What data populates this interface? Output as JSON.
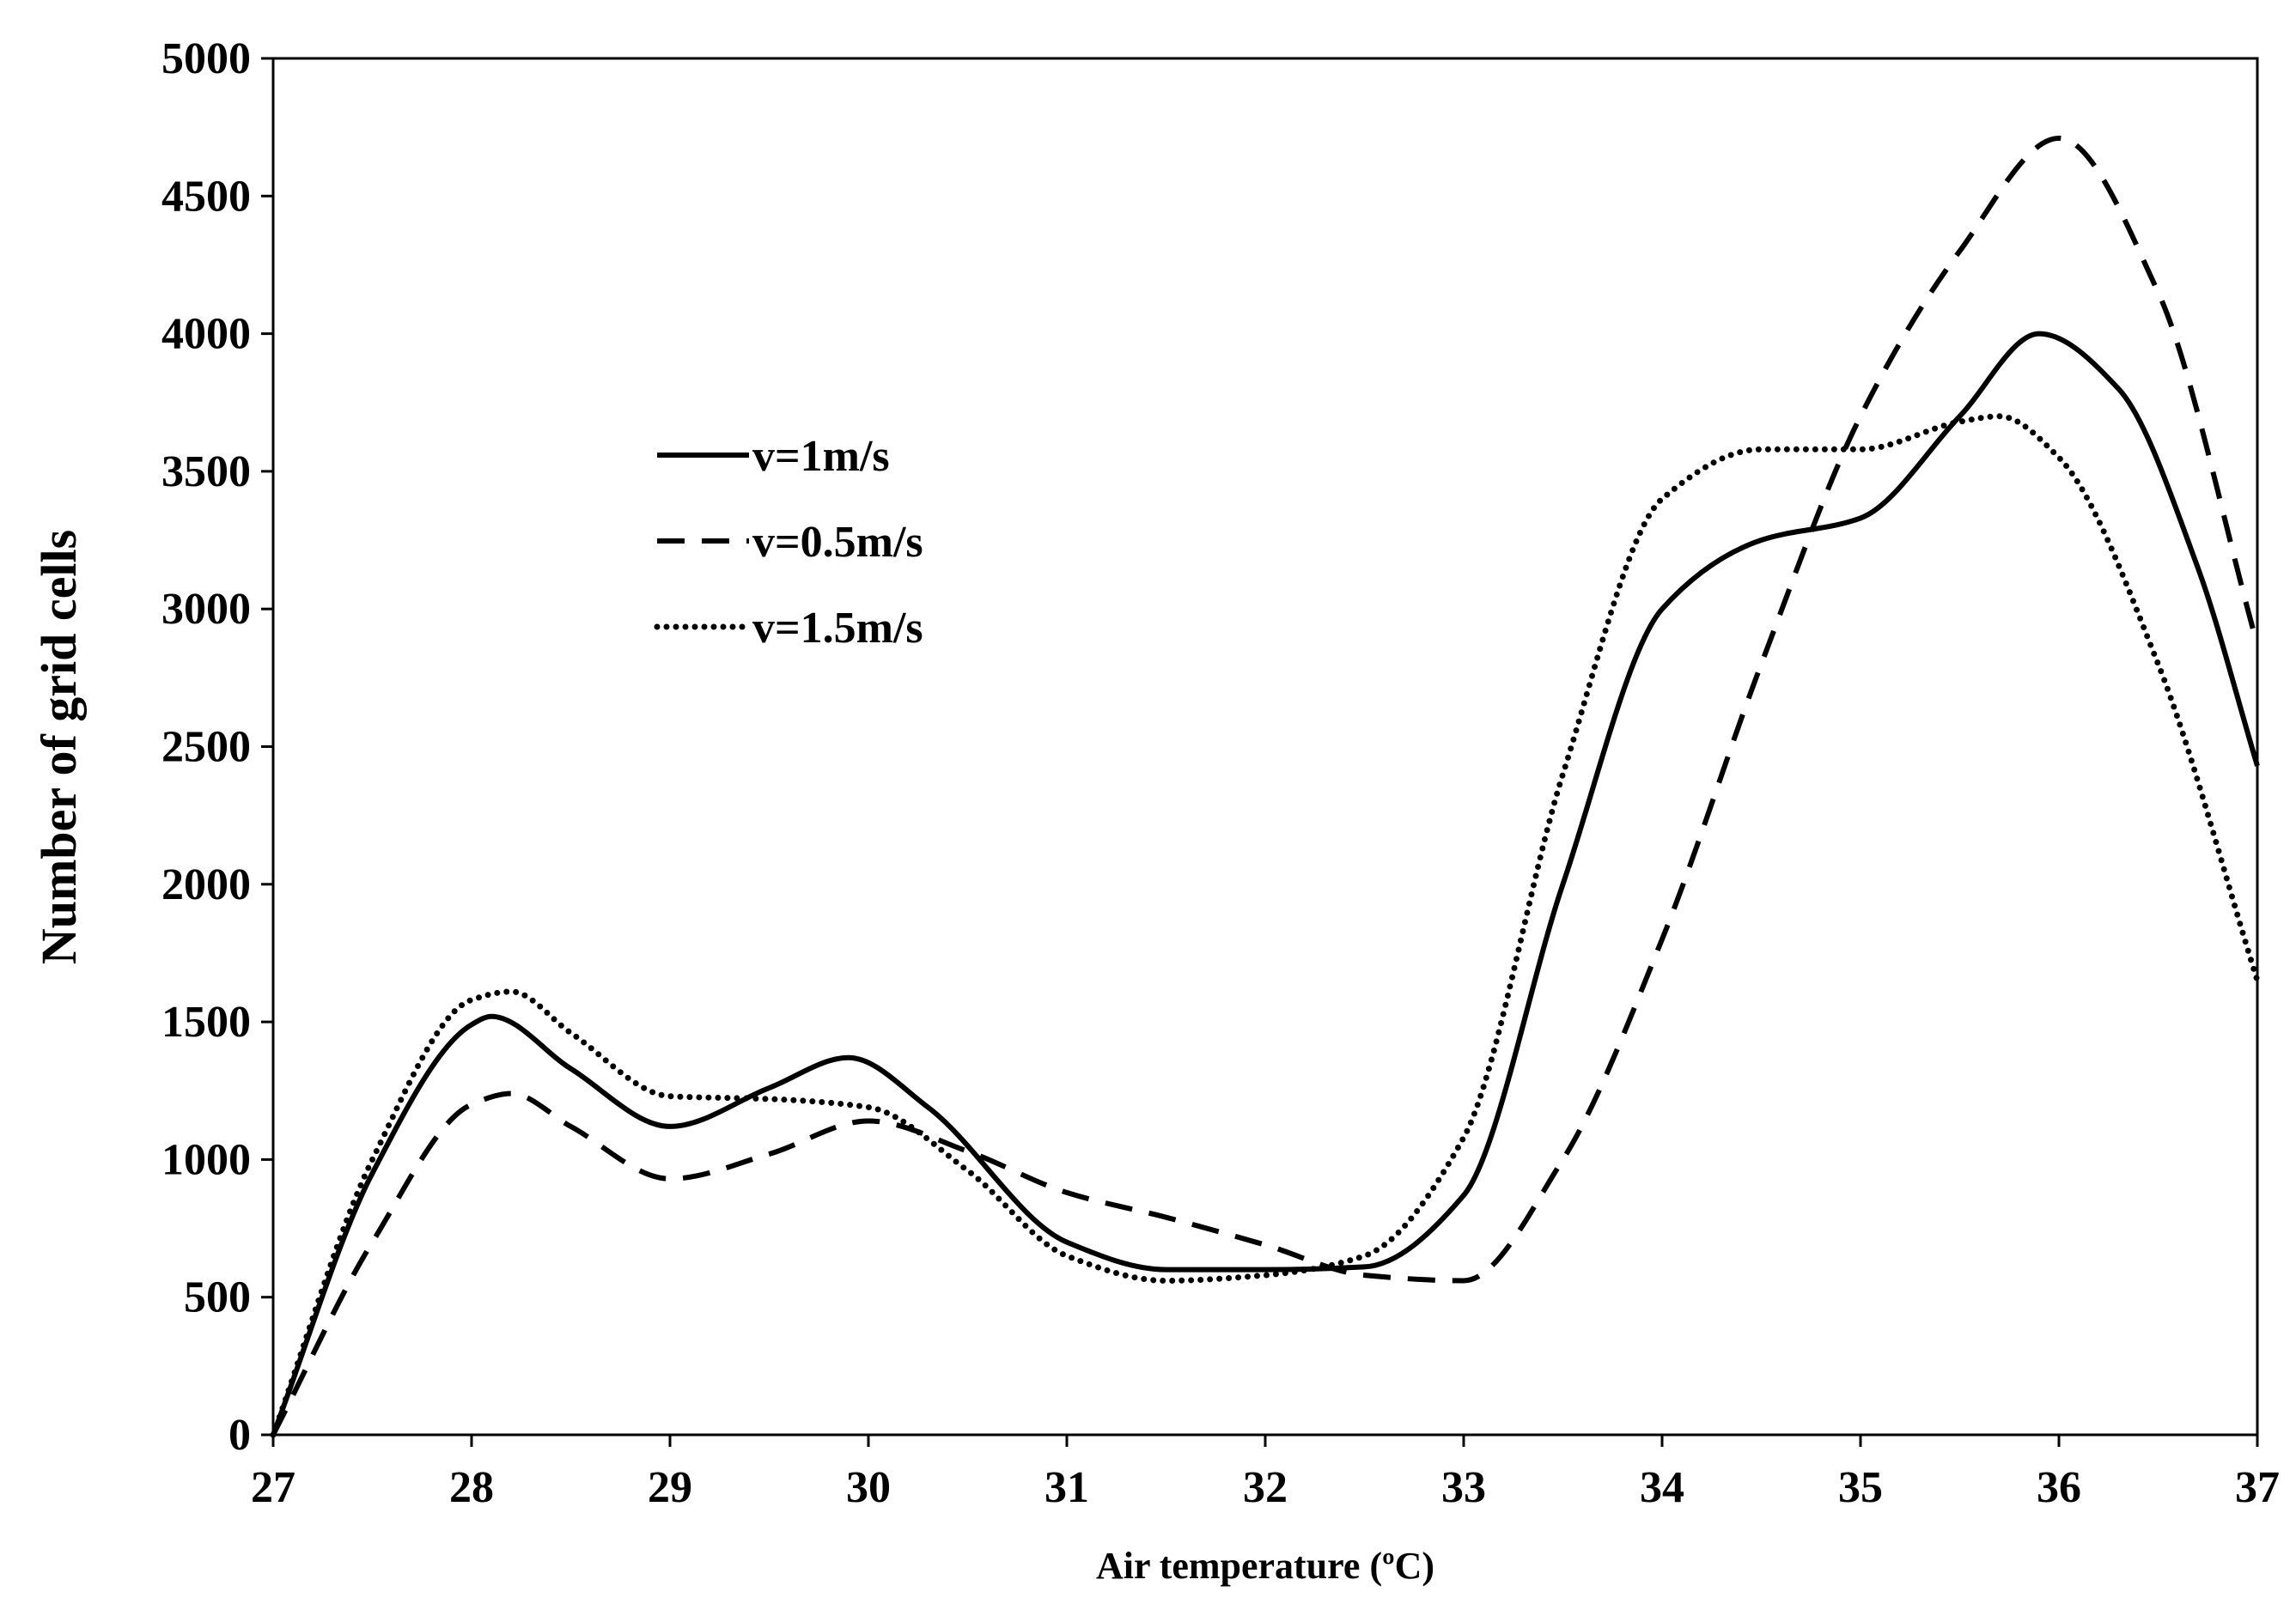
{
  "chart_data": {
    "type": "line",
    "title": "",
    "xlabel": "Air temperature (ºC)",
    "ylabel": "Number of grid cells",
    "xlim": [
      27,
      37
    ],
    "ylim": [
      0,
      5000
    ],
    "xticks": [
      27,
      28,
      29,
      30,
      31,
      32,
      33,
      34,
      35,
      36,
      37
    ],
    "yticks": [
      0,
      500,
      1000,
      1500,
      2000,
      2500,
      3000,
      3500,
      4000,
      4500,
      5000
    ],
    "grid": false,
    "legend_position": "upper-left",
    "series": [
      {
        "name": "v=1m/s",
        "style": "solid",
        "color": "#000000",
        "x": [
          27,
          27.5,
          28,
          28.1,
          28.5,
          29,
          29.5,
          29.9,
          30.3,
          31,
          31.5,
          32,
          32.5,
          33,
          33.5,
          34,
          34.5,
          35,
          35.5,
          35.9,
          36.3,
          36.7,
          37
        ],
        "values": [
          0,
          950,
          1490,
          1520,
          1330,
          1120,
          1260,
          1370,
          1190,
          700,
          600,
          600,
          610,
          870,
          2000,
          3000,
          3250,
          3330,
          3700,
          4000,
          3800,
          3150,
          2430
        ]
      },
      {
        "name": "v=0.5m/s",
        "style": "dashed",
        "color": "#000000",
        "x": [
          27,
          27.5,
          28,
          28.2,
          28.5,
          29,
          29.5,
          30,
          30.5,
          31,
          31.5,
          32,
          32.5,
          33,
          33.5,
          34,
          34.5,
          35,
          35.5,
          36,
          36.5,
          37
        ],
        "values": [
          0,
          700,
          1200,
          1240,
          1120,
          930,
          1020,
          1140,
          1030,
          880,
          790,
          690,
          580,
          560,
          1000,
          1800,
          2800,
          3700,
          4300,
          4710,
          4150,
          2870
        ]
      },
      {
        "name": "v=1.5m/s",
        "style": "dotted",
        "color": "#000000",
        "x": [
          27,
          27.5,
          28,
          28.2,
          28.5,
          29,
          29.5,
          30,
          30.5,
          31,
          31.5,
          32,
          32.5,
          33,
          33.5,
          34,
          34.5,
          35,
          35.5,
          35.7,
          36,
          36.5,
          37
        ],
        "values": [
          0,
          1000,
          1580,
          1610,
          1460,
          1230,
          1220,
          1190,
          960,
          650,
          560,
          580,
          650,
          1080,
          2400,
          3400,
          3580,
          3580,
          3680,
          3700,
          3550,
          2800,
          1650
        ]
      }
    ]
  }
}
